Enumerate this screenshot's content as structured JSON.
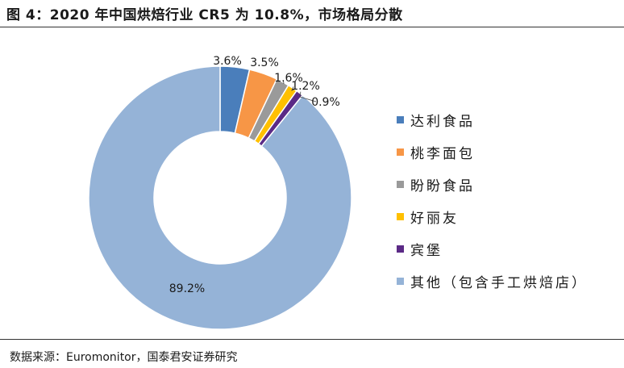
{
  "figure": {
    "title": "图 4：2020 年中国烘焙行业 CR5 为 10.8%，市场格局分散",
    "source": "数据来源：Euromonitor，国泰君安证券研究"
  },
  "chart_data": {
    "type": "pie",
    "donut": true,
    "title": "图 4：2020 年中国烘焙行业 CR5 为 10.8%，市场格局分散",
    "legend_position": "right",
    "categories": [
      "达利食品",
      "桃李面包",
      "盼盼食品",
      "好丽友",
      "宾堡",
      "其他（包含手工烘焙店）"
    ],
    "values": [
      3.6,
      3.5,
      1.6,
      1.2,
      0.9,
      89.2
    ],
    "labels": [
      "3.6%",
      "3.5%",
      "1.6%",
      "1.2%",
      "0.9%",
      "89.2%"
    ],
    "colors": [
      "#4a7ebb",
      "#f79646",
      "#9a9a9a",
      "#ffc000",
      "#5b2a86",
      "#95b3d7"
    ]
  }
}
